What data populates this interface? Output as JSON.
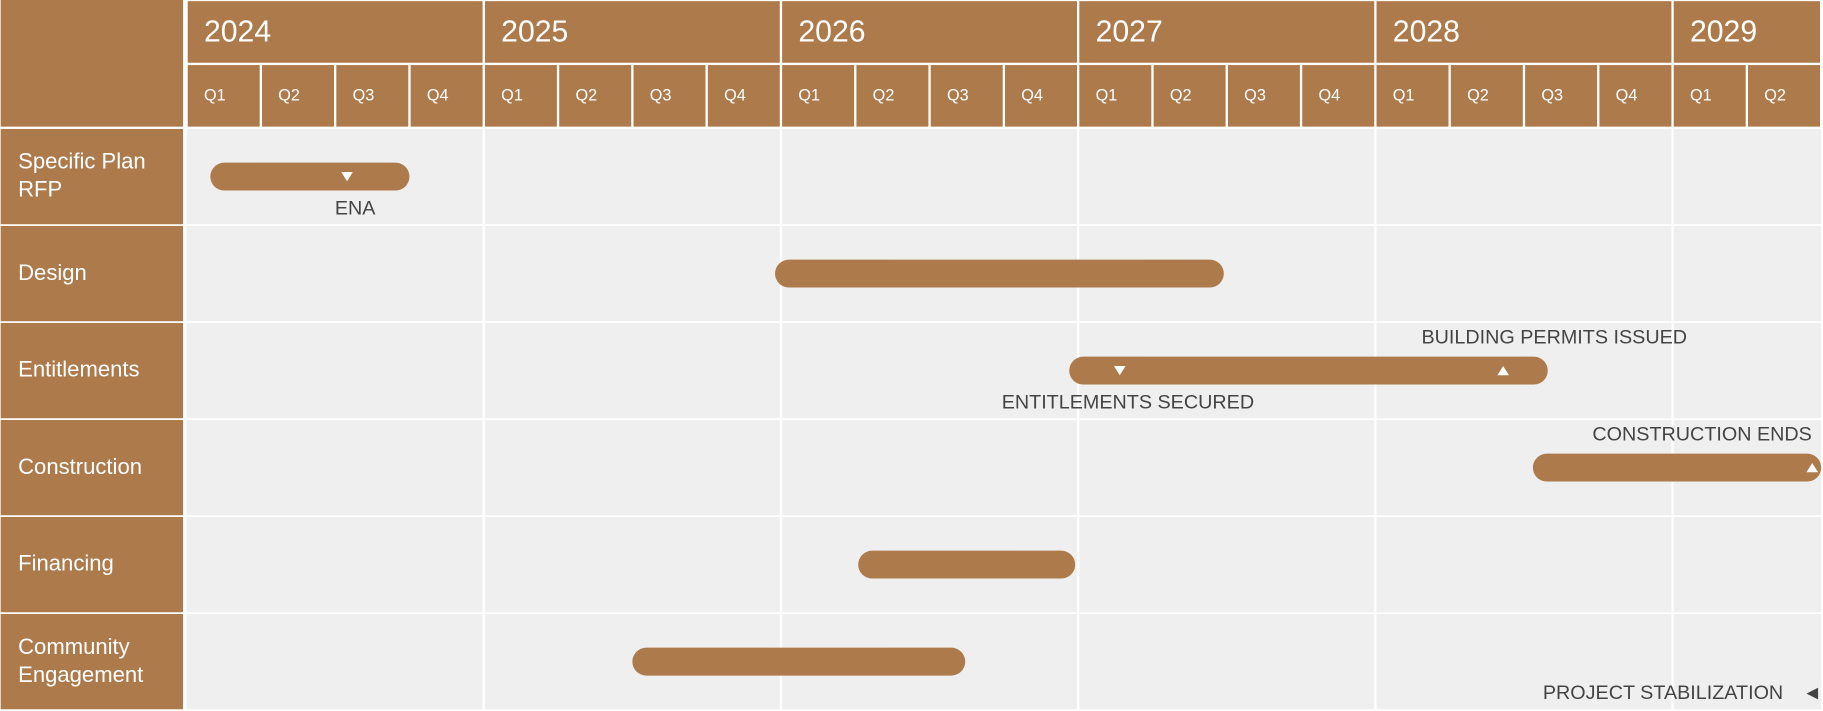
{
  "chart_data": {
    "type": "gantt",
    "color": "#ad7a4b",
    "background": "#efefef",
    "xlim": [
      2024,
      2029.5
    ],
    "xticks": [
      2024,
      2025,
      2026,
      2027,
      2028,
      2029
    ],
    "quarters": [
      "Q1",
      "Q2",
      "Q3",
      "Q4"
    ],
    "grid": true,
    "categories": [
      "Specific Plan RFP",
      "Design",
      "Entitlements",
      "Construction",
      "Financing",
      "Community Engagement"
    ],
    "tasks": [
      {
        "row": 0,
        "start": 2024.08,
        "end": 2024.75
      },
      {
        "row": 1,
        "start": 2025.98,
        "end": 2027.49
      },
      {
        "row": 2,
        "start": 2026.97,
        "end": 2028.58
      },
      {
        "row": 3,
        "start": 2028.53,
        "end": 2029.5
      },
      {
        "row": 4,
        "start": 2026.26,
        "end": 2026.99
      },
      {
        "row": 5,
        "start": 2025.5,
        "end": 2026.62
      }
    ],
    "milestones": [
      {
        "row": 0,
        "x": 2024.54,
        "label": "ENA",
        "marker": "down",
        "label_pos": "below"
      },
      {
        "row": 2,
        "x": 2027.14,
        "label": "ENTITLEMENTS SECURED",
        "marker": "down",
        "label_pos": "below"
      },
      {
        "row": 2,
        "x": 2028.43,
        "label": "BUILDING PERMITS ISSUED",
        "marker": "up",
        "label_pos": "above"
      },
      {
        "row": 3,
        "x": 2029.47,
        "label": "CONSTRUCTION ENDS",
        "marker": "up",
        "label_pos": "above"
      },
      {
        "row": 5,
        "x": 2029.47,
        "label": "PROJECT STABILIZATION",
        "marker": "left",
        "label_pos": "left"
      }
    ]
  }
}
